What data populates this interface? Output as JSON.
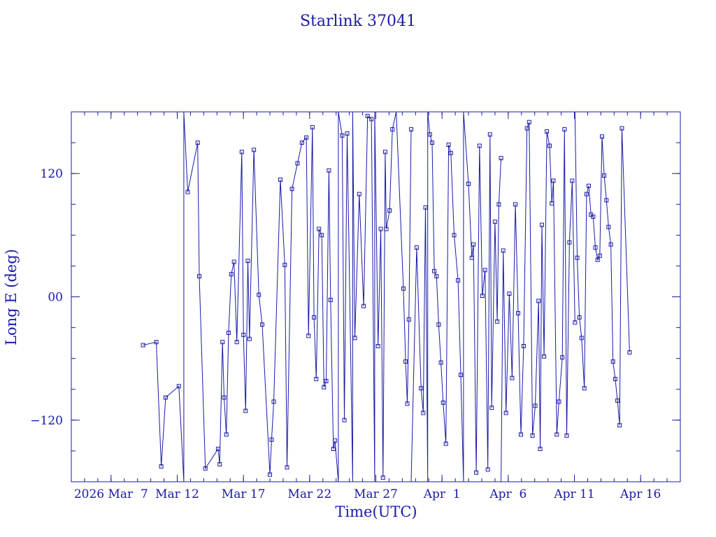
{
  "chart_data": {
    "type": "line",
    "title": "Starlink 37041",
    "xlabel": "Time(UTC)",
    "ylabel": "Long E (deg)",
    "xlim": [
      "2026-03-04",
      "2026-04-19"
    ],
    "ylim": [
      -180,
      180
    ],
    "x_ticks": [
      {
        "date": "2026-03-07",
        "label": "2026 Mar  7"
      },
      {
        "date": "2026-03-12",
        "label": "Mar 12"
      },
      {
        "date": "2026-03-17",
        "label": "Mar 17"
      },
      {
        "date": "2026-03-22",
        "label": "Mar 22"
      },
      {
        "date": "2026-03-27",
        "label": "Mar 27"
      },
      {
        "date": "2026-04-01",
        "label": "Apr  1"
      },
      {
        "date": "2026-04-06",
        "label": "Apr  6"
      },
      {
        "date": "2026-04-11",
        "label": "Apr 11"
      },
      {
        "date": "2026-04-16",
        "label": "Apr 16"
      }
    ],
    "y_ticks": [
      {
        "value": -120,
        "label": "−120"
      },
      {
        "value": 0,
        "label": "00"
      },
      {
        "value": 120,
        "label": "120"
      }
    ],
    "grid": false,
    "marker": "square",
    "color": "#1a1aa8",
    "series": [
      {
        "values": [
          [
            "2026-03-09T10:00",
            -47
          ],
          [
            "2026-03-10T10:00",
            -44
          ],
          [
            "2026-03-10T19:00",
            -165
          ],
          [
            "2026-03-11T03:00",
            -98
          ],
          [
            "2026-03-12T03:00",
            -87
          ],
          [
            "2026-03-12T12:00",
            -180
          ],
          [
            "2026-03-12T12:00",
            180
          ],
          [
            "2026-03-12T19:00",
            102
          ],
          [
            "2026-03-13T13:00",
            150
          ],
          [
            "2026-03-13T16:00",
            20
          ],
          [
            "2026-03-14T03:00",
            -167
          ],
          [
            "2026-03-15T02:00",
            -148
          ],
          [
            "2026-03-15T05:00",
            -163
          ],
          [
            "2026-03-15T10:00",
            -44
          ],
          [
            "2026-03-15T13:00",
            -98
          ],
          [
            "2026-03-15T17:00",
            -134
          ],
          [
            "2026-03-15T21:00",
            -35
          ],
          [
            "2026-03-16T02:00",
            22
          ],
          [
            "2026-03-16T07:00",
            34
          ],
          [
            "2026-03-16T12:00",
            -44
          ],
          [
            "2026-03-16T21:00",
            141
          ],
          [
            "2026-03-17T00:00",
            -37
          ],
          [
            "2026-03-17T04:00",
            -111
          ],
          [
            "2026-03-17T08:00",
            35
          ],
          [
            "2026-03-17T11:00",
            -41
          ],
          [
            "2026-03-17T19:00",
            143
          ],
          [
            "2026-03-18T04:00",
            2
          ],
          [
            "2026-03-18T10:00",
            -27
          ],
          [
            "2026-03-19T00:00",
            -173
          ],
          [
            "2026-03-19T03:00",
            -139
          ],
          [
            "2026-03-19T07:00",
            -102
          ],
          [
            "2026-03-19T19:00",
            114
          ],
          [
            "2026-03-20T03:00",
            31
          ],
          [
            "2026-03-20T07:00",
            -166
          ],
          [
            "2026-03-20T16:00",
            105
          ],
          [
            "2026-03-21T02:00",
            130
          ],
          [
            "2026-03-21T10:00",
            150
          ],
          [
            "2026-03-21T18:00",
            155
          ],
          [
            "2026-03-21T22:00",
            -38
          ],
          [
            "2026-03-22T05:00",
            165
          ],
          [
            "2026-03-22T08:00",
            -20
          ],
          [
            "2026-03-22T12:00",
            -80
          ],
          [
            "2026-03-22T17:00",
            66
          ],
          [
            "2026-03-22T22:00",
            60
          ],
          [
            "2026-03-23T02:00",
            -88
          ],
          [
            "2026-03-23T06:00",
            -82
          ],
          [
            "2026-03-23T11:00",
            123
          ],
          [
            "2026-03-23T14:00",
            -3
          ],
          [
            "2026-03-23T19:00",
            -148
          ],
          [
            "2026-03-23T22:00",
            -140
          ],
          [
            "2026-03-24T04:00",
            -180
          ],
          [
            "2026-03-24T04:00",
            180
          ],
          [
            "2026-03-24T11:00",
            157
          ],
          [
            "2026-03-24T15:00",
            -120
          ],
          [
            "2026-03-24T20:00",
            159
          ],
          [
            "2026-03-25T06:00",
            -180
          ],
          [
            "2026-03-25T06:00",
            180
          ],
          [
            "2026-03-25T10:00",
            -40
          ],
          [
            "2026-03-25T18:00",
            100
          ],
          [
            "2026-03-26T02:00",
            -9
          ],
          [
            "2026-03-26T09:00",
            176
          ],
          [
            "2026-03-26T16:00",
            173
          ],
          [
            "2026-03-26T22:00",
            -180
          ],
          [
            "2026-03-26T22:00",
            180
          ],
          [
            "2026-03-27T04:00",
            -48
          ],
          [
            "2026-03-27T09:00",
            66
          ],
          [
            "2026-03-27T13:00",
            -176
          ],
          [
            "2026-03-27T17:00",
            141
          ],
          [
            "2026-03-27T19:00",
            66
          ],
          [
            "2026-03-28T01:00",
            84
          ],
          [
            "2026-03-28T06:00",
            163
          ],
          [
            "2026-03-28T13:00",
            180
          ],
          [
            "2026-03-29T02:00",
            8
          ],
          [
            "2026-03-29T06:00",
            -63
          ],
          [
            "2026-03-29T09:00",
            -104
          ],
          [
            "2026-03-29T12:00",
            -22
          ],
          [
            "2026-03-29T16:00",
            163
          ]
        ]
      },
      {
        "values": [
          [
            "2026-03-29T16:00",
            -180
          ],
          [
            "2026-03-30T02:00",
            48
          ],
          [
            "2026-03-30T10:00",
            -89
          ],
          [
            "2026-03-30T14:00",
            -113
          ],
          [
            "2026-03-30T18:00",
            87
          ],
          [
            "2026-03-30T22:00",
            -180
          ],
          [
            "2026-03-30T22:00",
            180
          ],
          [
            "2026-03-31T02:00",
            158
          ],
          [
            "2026-03-31T06:00",
            150
          ],
          [
            "2026-03-31T10:00",
            25
          ],
          [
            "2026-03-31T14:00",
            20
          ],
          [
            "2026-03-31T18:00",
            -27
          ],
          [
            "2026-03-31T22:00",
            -64
          ],
          [
            "2026-04-01T02:00",
            -103
          ],
          [
            "2026-04-01T07:00",
            -143
          ],
          [
            "2026-04-01T12:00",
            148
          ],
          [
            "2026-04-01T16:00",
            140
          ],
          [
            "2026-04-01T22:00",
            60
          ],
          [
            "2026-04-02T05:00",
            16
          ],
          [
            "2026-04-02T10:00",
            -76
          ],
          [
            "2026-04-02T15:00",
            -180
          ],
          [
            "2026-04-02T15:00",
            180
          ],
          [
            "2026-04-03T00:00",
            110
          ],
          [
            "2026-04-03T06:00",
            38
          ],
          [
            "2026-04-03T09:00",
            51
          ],
          [
            "2026-04-03T14:00",
            -171
          ],
          [
            "2026-04-03T20:00",
            147
          ],
          [
            "2026-04-04T01:00",
            1
          ],
          [
            "2026-04-04T06:00",
            26
          ],
          [
            "2026-04-04T11:00",
            -168
          ],
          [
            "2026-04-04T15:00",
            158
          ],
          [
            "2026-04-04T18:00",
            -108
          ],
          [
            "2026-04-05T00:00",
            73
          ],
          [
            "2026-04-05T04:00",
            -24
          ],
          [
            "2026-04-05T07:00",
            90
          ],
          [
            "2026-04-05T11:00",
            135
          ]
        ]
      },
      {
        "values": [
          [
            "2026-04-05T11:00",
            -180
          ],
          [
            "2026-04-05T15:00",
            45
          ],
          [
            "2026-04-05T20:00",
            -113
          ],
          [
            "2026-04-06T02:00",
            3
          ],
          [
            "2026-04-06T07:00",
            -79
          ],
          [
            "2026-04-06T13:00",
            90
          ],
          [
            "2026-04-06T18:00",
            -16
          ],
          [
            "2026-04-06T23:00",
            -134
          ],
          [
            "2026-04-07T04:00",
            -48
          ],
          [
            "2026-04-07T10:00",
            164
          ],
          [
            "2026-04-07T14:00",
            170
          ],
          [
            "2026-04-07T20:00",
            -135
          ],
          [
            "2026-04-08T01:00",
            -106
          ],
          [
            "2026-04-08T07:00",
            -4
          ],
          [
            "2026-04-08T10:00",
            -148
          ],
          [
            "2026-04-08T13:00",
            70
          ],
          [
            "2026-04-08T17:00",
            -58
          ],
          [
            "2026-04-08T22:00",
            161
          ],
          [
            "2026-04-09T03:00",
            147
          ],
          [
            "2026-04-09T07:00",
            91
          ],
          [
            "2026-04-09T10:00",
            113
          ],
          [
            "2026-04-09T16:00",
            -134
          ],
          [
            "2026-04-09T20:00",
            -102
          ],
          [
            "2026-04-10T02:00",
            -59
          ],
          [
            "2026-04-10T06:00",
            163
          ],
          [
            "2026-04-10T10:00",
            -135
          ],
          [
            "2026-04-10T15:00",
            53
          ],
          [
            "2026-04-10T20:00",
            113
          ],
          [
            "2026-04-11T01:00",
            -25
          ]
        ]
      },
      {
        "values": [
          [
            "2026-04-11T01:00",
            180
          ],
          [
            "2026-04-11T05:00",
            38
          ],
          [
            "2026-04-11T09:00",
            -20
          ],
          [
            "2026-04-11T13:00",
            -40
          ],
          [
            "2026-04-11T18:00",
            -89
          ],
          [
            "2026-04-11T22:00",
            100
          ],
          [
            "2026-04-12T02:00",
            108
          ],
          [
            "2026-04-12T06:00",
            80
          ],
          [
            "2026-04-12T10:00",
            78
          ],
          [
            "2026-04-12T14:00",
            48
          ],
          [
            "2026-04-12T18:00",
            36
          ],
          [
            "2026-04-12T22:00",
            40
          ],
          [
            "2026-04-13T02:00",
            156
          ],
          [
            "2026-04-13T06:00",
            118
          ],
          [
            "2026-04-13T10:00",
            94
          ],
          [
            "2026-04-13T14:00",
            68
          ],
          [
            "2026-04-13T18:00",
            51
          ],
          [
            "2026-04-13T22:00",
            -63
          ],
          [
            "2026-04-14T02:00",
            -80
          ],
          [
            "2026-04-14T06:00",
            -101
          ],
          [
            "2026-04-14T10:00",
            -125
          ],
          [
            "2026-04-14T14:00",
            164
          ],
          [
            "2026-04-15T04:00",
            -54
          ]
        ]
      }
    ]
  }
}
